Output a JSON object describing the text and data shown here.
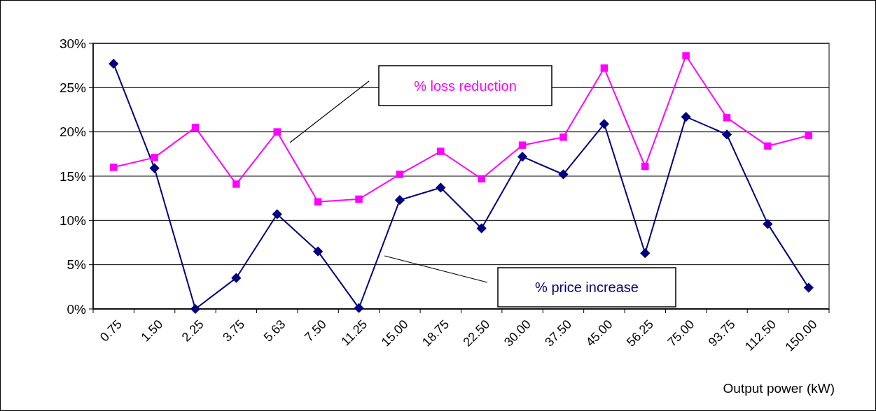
{
  "chart_data": {
    "type": "line",
    "xlabel": "Output power (kW)",
    "categories": [
      "0.75",
      "1.50",
      "2.25",
      "3.75",
      "5.63",
      "7.50",
      "11.25",
      "15.00",
      "18.75",
      "22.50",
      "30.00",
      "37.50",
      "45.00",
      "56.25",
      "75.00",
      "93.75",
      "112.50",
      "150.00"
    ],
    "series": [
      {
        "name": "% price increase",
        "color": "#000080",
        "marker": "diamond",
        "values": [
          27.7,
          15.9,
          0,
          3.5,
          10.7,
          6.5,
          0.1,
          12.3,
          13.7,
          9.1,
          17.2,
          15.2,
          20.9,
          6.3,
          21.7,
          19.7,
          9.6,
          2.4
        ]
      },
      {
        "name": "% loss reduction",
        "color": "#ff00ff",
        "marker": "square",
        "values": [
          16.0,
          17.1,
          20.5,
          14.1,
          20.0,
          12.1,
          12.4,
          15.2,
          17.8,
          14.7,
          18.5,
          19.4,
          27.2,
          16.1,
          28.6,
          21.6,
          18.4,
          19.6
        ]
      }
    ],
    "ylim": [
      0,
      30
    ],
    "yticks": [
      {
        "value": 0,
        "label": "0%"
      },
      {
        "value": 5,
        "label": "5%"
      },
      {
        "value": 10,
        "label": "10%"
      },
      {
        "value": 15,
        "label": "15%"
      },
      {
        "value": 20,
        "label": "20%"
      },
      {
        "value": 25,
        "label": "25%"
      },
      {
        "value": 30,
        "label": "30%"
      }
    ],
    "grid": "y",
    "legend": false
  }
}
